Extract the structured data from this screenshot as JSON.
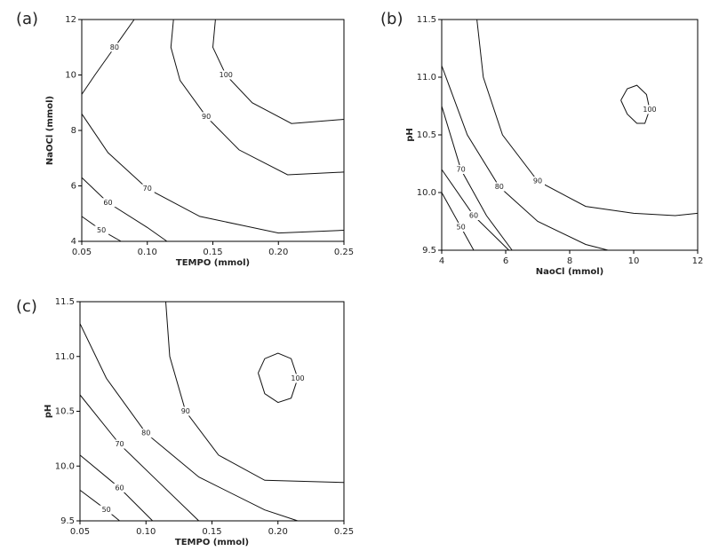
{
  "chart_data": [
    {
      "type": "contour",
      "title": "(a)",
      "x_label": "TEMPO (mmol)",
      "y_label": "NaOCl (mmol)",
      "xlim": [
        0.05,
        0.25
      ],
      "ylim": [
        4,
        12
      ],
      "xticks": [
        0.05,
        {
          "value": 0.1,
          "label": "0.10"
        },
        0.15,
        {
          "value": 0.2,
          "label": "0.20"
        },
        0.25
      ],
      "yticks": [
        4,
        6,
        8,
        10,
        12
      ],
      "contours": [
        {
          "level": 100,
          "x": [
            0.152,
            0.15,
            0.16,
            0.18,
            0.21,
            0.25
          ],
          "y": [
            12,
            11,
            10,
            9,
            8.25,
            8.4
          ]
        },
        {
          "level": 90,
          "x": [
            0.12,
            0.118,
            0.125,
            0.145,
            0.17,
            0.207,
            0.25
          ],
          "y": [
            12,
            11,
            9.8,
            8.5,
            7.3,
            6.4,
            6.5
          ]
        },
        {
          "level": 80,
          "x": [
            0.09,
            0.075,
            0.06,
            0.05
          ],
          "y": [
            12,
            11,
            10,
            9.3
          ]
        },
        {
          "level": 70,
          "x": [
            0.05,
            0.07,
            0.1,
            0.14,
            0.2,
            0.25
          ],
          "y": [
            8.6,
            7.2,
            5.9,
            4.9,
            4.3,
            4.4
          ]
        },
        {
          "level": 60,
          "x": [
            0.05,
            0.07,
            0.1,
            0.115
          ],
          "y": [
            6.3,
            5.4,
            4.5,
            4.0
          ]
        },
        {
          "level": 50,
          "x": [
            0.05,
            0.065,
            0.08
          ],
          "y": [
            4.9,
            4.4,
            4.0
          ]
        }
      ]
    },
    {
      "type": "contour",
      "title": "(b)",
      "x_label": "NaoCl (mmol)",
      "y_label": "pH",
      "xlim": [
        4,
        12
      ],
      "ylim": [
        9.5,
        11.5
      ],
      "xticks": [
        4,
        6,
        8,
        10,
        12
      ],
      "yticks": [
        9.5,
        {
          "value": 10,
          "label": "10.0"
        },
        10.5,
        {
          "value": 11,
          "label": "11.0"
        },
        11.5
      ],
      "contours": [
        {
          "level": 100,
          "x": [
            9.6,
            9.8,
            10.1,
            10.4,
            10.5,
            10.35,
            10.1,
            9.8,
            9.6
          ],
          "y": [
            10.8,
            10.9,
            10.93,
            10.85,
            10.72,
            10.6,
            10.6,
            10.68,
            10.8
          ]
        },
        {
          "level": 90,
          "x": [
            5.1,
            5.3,
            5.9,
            7,
            8.5,
            10,
            11.3,
            12
          ],
          "y": [
            11.5,
            11.0,
            10.5,
            10.1,
            9.88,
            9.82,
            9.8,
            9.82
          ]
        },
        {
          "level": 80,
          "x": [
            4.0,
            4.8,
            5.8,
            7,
            8.5,
            9.2
          ],
          "y": [
            11.1,
            10.5,
            10.05,
            9.75,
            9.55,
            9.5
          ]
        },
        {
          "level": 70,
          "x": [
            4,
            4.6,
            5.4,
            6.2
          ],
          "y": [
            10.75,
            10.2,
            9.8,
            9.5
          ]
        },
        {
          "level": 60,
          "x": [
            4,
            5,
            6.1
          ],
          "y": [
            10.2,
            9.8,
            9.5
          ]
        },
        {
          "level": 50,
          "x": [
            4,
            4.6,
            5
          ],
          "y": [
            10.0,
            9.7,
            9.5
          ]
        }
      ]
    },
    {
      "type": "contour",
      "title": "(c)",
      "x_label": "TEMPO (mmol)",
      "y_label": "pH",
      "xlim": [
        0.05,
        0.25
      ],
      "ylim": [
        9.5,
        11.5
      ],
      "xticks": [
        0.05,
        {
          "value": 0.1,
          "label": "0.10"
        },
        0.15,
        {
          "value": 0.2,
          "label": "0.20"
        },
        0.25
      ],
      "yticks": [
        9.5,
        {
          "value": 10,
          "label": "10.0"
        },
        10.5,
        {
          "value": 11,
          "label": "11.0"
        },
        11.5
      ],
      "contours": [
        {
          "level": 100,
          "x": [
            0.185,
            0.19,
            0.2,
            0.21,
            0.215,
            0.21,
            0.2,
            0.19,
            0.185
          ],
          "y": [
            10.85,
            10.98,
            11.03,
            10.98,
            10.8,
            10.62,
            10.58,
            10.66,
            10.85
          ]
        },
        {
          "level": 90,
          "x": [
            0.115,
            0.118,
            0.13,
            0.155,
            0.19,
            0.25
          ],
          "y": [
            11.5,
            11,
            10.5,
            10.1,
            9.87,
            9.85
          ]
        },
        {
          "level": 80,
          "x": [
            0.05,
            0.07,
            0.1,
            0.14,
            0.19,
            0.215
          ],
          "y": [
            11.3,
            10.8,
            10.3,
            9.9,
            9.6,
            9.5
          ]
        },
        {
          "level": 70,
          "x": [
            0.05,
            0.08,
            0.11,
            0.14
          ],
          "y": [
            10.65,
            10.2,
            9.85,
            9.5
          ]
        },
        {
          "level": 60,
          "x": [
            0.05,
            0.08,
            0.105
          ],
          "y": [
            10.1,
            9.8,
            9.5
          ]
        },
        {
          "level": 50,
          "x": [
            0.05,
            0.07,
            0.08
          ],
          "y": [
            9.78,
            9.6,
            9.5
          ]
        }
      ]
    }
  ]
}
